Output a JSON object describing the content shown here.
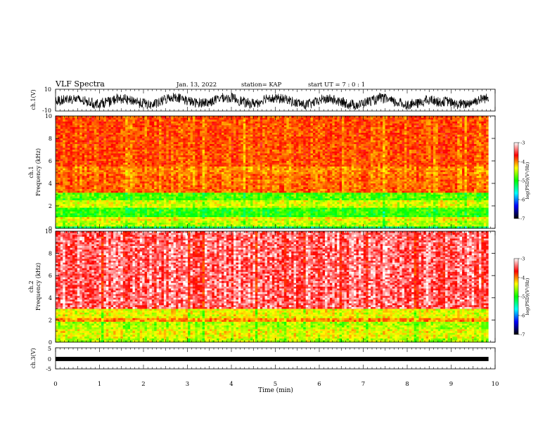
{
  "header": {
    "title": "VLF Spectra",
    "date": "Jan. 13, 2022",
    "station": "station= KAP",
    "start": "start UT =  7 : 0 : 1"
  },
  "chart_data": [
    {
      "type": "line",
      "name": "ch1-waveform",
      "ylabel": "ch.1(V)",
      "ylim": [
        -10,
        10
      ],
      "yticklabels": [
        "10",
        "-10"
      ],
      "xlim": [
        0,
        10
      ]
    },
    {
      "type": "heatmap",
      "name": "ch1-spectrogram",
      "ylabel": "ch.1\nFrequency (kHz)",
      "ylim": [
        0,
        10
      ],
      "yticklabels": [
        "0",
        "2",
        "4",
        "6",
        "8",
        "10"
      ],
      "xlim": [
        0,
        9.85
      ],
      "colorbar": {
        "label": "log(PSD)(V²/Hz)",
        "range": [
          -7,
          -3
        ],
        "ticklabels": [
          "-3",
          "-4",
          "-5",
          "-6",
          "-7"
        ],
        "colors": [
          "#ffffff",
          "#ff0000",
          "#ffff00",
          "#00ff00",
          "#00ffff",
          "#0000ff",
          "#000000"
        ]
      },
      "bands": [
        {
          "range": [
            0,
            0.25
          ],
          "level": -5.3
        },
        {
          "range": [
            0.25,
            0.6
          ],
          "level": -4.6
        },
        {
          "range": [
            0.6,
            1.0
          ],
          "level": -4.4
        },
        {
          "range": [
            1.0,
            1.8
          ],
          "level": -5.0
        },
        {
          "range": [
            1.8,
            2.5
          ],
          "level": -4.5
        },
        {
          "range": [
            2.5,
            3.2
          ],
          "level": -4.9
        },
        {
          "range": [
            3.2,
            4.8
          ],
          "level": -3.9
        },
        {
          "range": [
            4.8,
            5.5
          ],
          "level": -4.0
        },
        {
          "range": [
            5.5,
            10
          ],
          "level": -3.8
        }
      ]
    },
    {
      "type": "heatmap",
      "name": "ch2-spectrogram",
      "ylabel": "ch.2\nFrequency (kHz)",
      "ylim": [
        0,
        10
      ],
      "yticklabels": [
        "0",
        "2",
        "4",
        "6",
        "8",
        "10"
      ],
      "xlim": [
        0,
        9.85
      ],
      "colorbar": {
        "label": "log(PSD)(V²/Hz)",
        "range": [
          -7,
          -3
        ],
        "ticklabels": [
          "-3",
          "-4",
          "-5",
          "-6",
          "-7"
        ],
        "colors": [
          "#ffffff",
          "#ff0000",
          "#ffff00",
          "#00ff00",
          "#00ffff",
          "#0000ff",
          "#000000"
        ]
      },
      "bands": [
        {
          "range": [
            0,
            0.3
          ],
          "level": -4.6
        },
        {
          "range": [
            0.3,
            1.1
          ],
          "level": -4.4
        },
        {
          "range": [
            1.1,
            1.8
          ],
          "level": -4.6
        },
        {
          "range": [
            1.8,
            2.2
          ],
          "level": -4.0
        },
        {
          "range": [
            2.2,
            3.0
          ],
          "level": -4.4
        },
        {
          "range": [
            3.0,
            10
          ],
          "level": -3.3
        }
      ]
    },
    {
      "type": "line",
      "name": "ch3-waveform",
      "ylabel": "ch.3(V)",
      "ylim": [
        -5,
        5
      ],
      "yticklabels": [
        "5",
        "0",
        "-5"
      ],
      "xlim": [
        0,
        10
      ],
      "xlabel": "Time (min)",
      "xticklabels": [
        "0",
        "1",
        "2",
        "3",
        "4",
        "5",
        "6",
        "7",
        "8",
        "9",
        "10"
      ],
      "baseline": -0.3
    }
  ]
}
